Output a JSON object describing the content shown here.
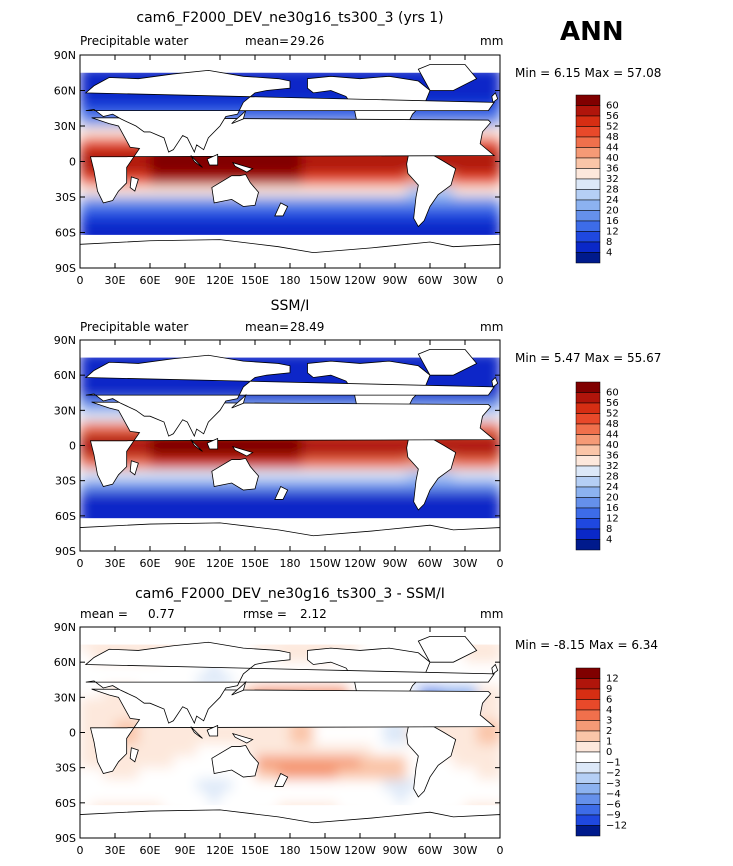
{
  "season": "ANN",
  "chart_data": [
    {
      "type": "heatmap",
      "title": "cam6_F2000_DEV_ne30g16_ts300_3 (yrs 1)",
      "left_label": "Precipitable water",
      "stat_label": "mean=",
      "stat_value": "29.26",
      "stat2_label": "",
      "stat2_value": "",
      "units": "mm",
      "min_text": "Min =    6.15 Max =   57.08",
      "min": 6.15,
      "max": 57.08,
      "x_ticks": [
        "0",
        "30E",
        "60E",
        "90E",
        "120E",
        "150E",
        "180",
        "150W",
        "120W",
        "90W",
        "60W",
        "30W",
        "0"
      ],
      "y_ticks": [
        "90N",
        "60N",
        "30N",
        "0",
        "30S",
        "60S",
        "90S"
      ],
      "colorbar_levels": [
        "60",
        "56",
        "52",
        "48",
        "44",
        "40",
        "36",
        "32",
        "28",
        "24",
        "20",
        "16",
        "12",
        "8",
        "4"
      ],
      "colors": [
        "#800000",
        "#b0150b",
        "#d62e13",
        "#e8492a",
        "#f0704c",
        "#f59a76",
        "#fac5a8",
        "#fde8dc",
        "#dce8f8",
        "#b5cff5",
        "#8cb2f0",
        "#6590eb",
        "#3d6ce8",
        "#1f48e0",
        "#0a28c8",
        "#001a8c"
      ]
    },
    {
      "type": "heatmap",
      "title": "SSM/I",
      "left_label": "Precipitable water",
      "stat_label": "mean=",
      "stat_value": "28.49",
      "stat2_label": "",
      "stat2_value": "",
      "units": "mm",
      "min_text": "Min =    5.47 Max =   55.67",
      "min": 5.47,
      "max": 55.67,
      "x_ticks": [
        "0",
        "30E",
        "60E",
        "90E",
        "120E",
        "150E",
        "180",
        "150W",
        "120W",
        "90W",
        "60W",
        "30W",
        "0"
      ],
      "y_ticks": [
        "90N",
        "60N",
        "30N",
        "0",
        "30S",
        "60S",
        "90S"
      ],
      "colorbar_levels": [
        "60",
        "56",
        "52",
        "48",
        "44",
        "40",
        "36",
        "32",
        "28",
        "24",
        "20",
        "16",
        "12",
        "8",
        "4"
      ],
      "colors": [
        "#800000",
        "#b0150b",
        "#d62e13",
        "#e8492a",
        "#f0704c",
        "#f59a76",
        "#fac5a8",
        "#fde8dc",
        "#dce8f8",
        "#b5cff5",
        "#8cb2f0",
        "#6590eb",
        "#3d6ce8",
        "#1f48e0",
        "#0a28c8",
        "#001a8c"
      ]
    },
    {
      "type": "heatmap",
      "title": "cam6_F2000_DEV_ne30g16_ts300_3 - SSM/I",
      "left_label": "mean =",
      "stat_label": "0.77",
      "stat_value": "",
      "stat2_label": "rmse =",
      "stat2_value": "2.12",
      "units": "mm",
      "min_text": "Min =   -8.15 Max =    6.34",
      "min": -8.15,
      "max": 6.34,
      "x_ticks": [
        "0",
        "30E",
        "60E",
        "90E",
        "120E",
        "150E",
        "180",
        "150W",
        "120W",
        "90W",
        "60W",
        "30W",
        "0"
      ],
      "y_ticks": [
        "90N",
        "60N",
        "30N",
        "0",
        "30S",
        "60S",
        "90S"
      ],
      "colorbar_levels": [
        "12",
        "9",
        "6",
        "4",
        "3",
        "2",
        "1",
        "0",
        "−1",
        "−2",
        "−3",
        "−4",
        "−6",
        "−9",
        "−12"
      ],
      "colors": [
        "#800000",
        "#b0150b",
        "#d62e13",
        "#e8492a",
        "#f0704c",
        "#f59a76",
        "#fac5a8",
        "#fde8dc",
        "#ffffff",
        "#dce8f8",
        "#b5cff5",
        "#8cb2f0",
        "#6590eb",
        "#3d6ce8",
        "#1f48e0",
        "#001a8c"
      ]
    }
  ]
}
